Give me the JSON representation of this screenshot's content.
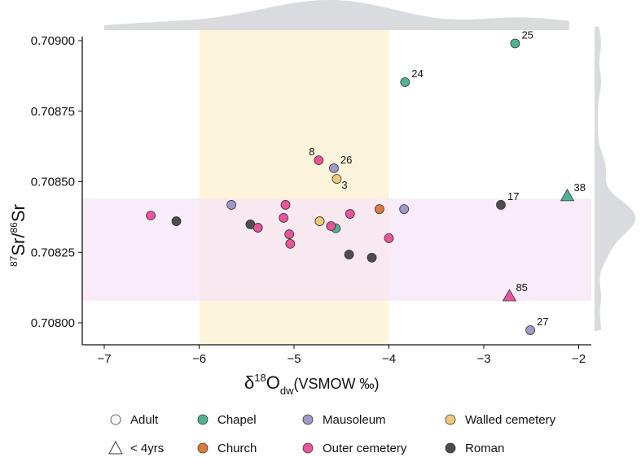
{
  "chart_data": {
    "type": "scatter",
    "xlabel_main": "δ",
    "xlabel_sup": "18",
    "xlabel_O": "O",
    "xlabel_sub": "dw",
    "xlabel_rest": "(VSMOW ‰)",
    "ylabel_sup1": "87",
    "ylabel_mid": "Sr/",
    "ylabel_sup2": "86",
    "ylabel_end": "Sr",
    "xlim": [
      -7.25,
      -1.85
    ],
    "ylim": [
      0.70793,
      0.70905
    ],
    "xticks": [
      -7,
      -6,
      -5,
      -4,
      -3,
      -2
    ],
    "xtick_labels": [
      "−7",
      "−6",
      "−5",
      "−4",
      "−3",
      "−2"
    ],
    "yticks": [
      0.709,
      0.70875,
      0.7085,
      0.70825,
      0.708
    ],
    "ytick_labels": [
      "0.70900",
      "0.70875",
      "0.70850",
      "0.70825",
      "0.70800"
    ],
    "bands": {
      "x_range": [
        -6,
        -4
      ],
      "y_range": [
        0.708078,
        0.708441
      ]
    },
    "colors": {
      "Chapel": "#4fb392",
      "Mausoleum": "#9c9ac9",
      "Walled cemetery": "#ecc87a",
      "Church": "#e07a3c",
      "Outer cemetery": "#e8559a",
      "Roman": "#4d4d4d",
      "band_x": "#fdf4dc",
      "band_y": "#f6e6f7",
      "density": "#d9dbdf"
    },
    "points": [
      {
        "x": -2.67,
        "y": 0.70899,
        "group": "Chapel",
        "shape": "circle",
        "label": "25"
      },
      {
        "x": -3.83,
        "y": 0.708853,
        "group": "Chapel",
        "shape": "circle",
        "label": "24"
      },
      {
        "x": -4.74,
        "y": 0.708576,
        "group": "Outer cemetery",
        "shape": "circle",
        "label": "8"
      },
      {
        "x": -4.58,
        "y": 0.708548,
        "group": "Mausoleum",
        "shape": "circle",
        "label": "26"
      },
      {
        "x": -4.55,
        "y": 0.70851,
        "group": "Walled cemetery",
        "shape": "circle",
        "label": "3"
      },
      {
        "x": -2.82,
        "y": 0.708418,
        "group": "Roman",
        "shape": "circle",
        "label": "17"
      },
      {
        "x": -2.12,
        "y": 0.70845,
        "group": "Chapel",
        "shape": "triangle",
        "label": "38"
      },
      {
        "x": -2.73,
        "y": 0.708095,
        "group": "Outer cemetery",
        "shape": "triangle",
        "label": "85"
      },
      {
        "x": -2.51,
        "y": 0.707974,
        "group": "Mausoleum",
        "shape": "circle",
        "label": "27"
      },
      {
        "x": -6.51,
        "y": 0.70838,
        "group": "Outer cemetery",
        "shape": "circle"
      },
      {
        "x": -6.24,
        "y": 0.70836,
        "group": "Roman",
        "shape": "circle"
      },
      {
        "x": -5.66,
        "y": 0.708418,
        "group": "Mausoleum",
        "shape": "circle"
      },
      {
        "x": -5.46,
        "y": 0.708349,
        "group": "Roman",
        "shape": "circle"
      },
      {
        "x": -5.38,
        "y": 0.708337,
        "group": "Outer cemetery",
        "shape": "circle"
      },
      {
        "x": -5.09,
        "y": 0.708418,
        "group": "Outer cemetery",
        "shape": "circle"
      },
      {
        "x": -5.11,
        "y": 0.708372,
        "group": "Outer cemetery",
        "shape": "circle"
      },
      {
        "x": -5.05,
        "y": 0.708314,
        "group": "Outer cemetery",
        "shape": "circle"
      },
      {
        "x": -5.04,
        "y": 0.70828,
        "group": "Outer cemetery",
        "shape": "circle"
      },
      {
        "x": -4.73,
        "y": 0.70836,
        "group": "Walled cemetery",
        "shape": "circle"
      },
      {
        "x": -4.56,
        "y": 0.708335,
        "group": "Chapel",
        "shape": "circle"
      },
      {
        "x": -4.61,
        "y": 0.708343,
        "group": "Outer cemetery",
        "shape": "circle"
      },
      {
        "x": -4.41,
        "y": 0.708386,
        "group": "Outer cemetery",
        "shape": "circle"
      },
      {
        "x": -4.1,
        "y": 0.708403,
        "group": "Church",
        "shape": "circle"
      },
      {
        "x": -3.84,
        "y": 0.708403,
        "group": "Mausoleum",
        "shape": "circle"
      },
      {
        "x": -4.0,
        "y": 0.7083,
        "group": "Outer cemetery",
        "shape": "circle"
      },
      {
        "x": -4.42,
        "y": 0.708242,
        "group": "Roman",
        "shape": "circle"
      },
      {
        "x": -4.18,
        "y": 0.708231,
        "group": "Roman",
        "shape": "circle"
      }
    ],
    "legend": {
      "placement": "bottom",
      "items": [
        {
          "label": "Adult",
          "shape": "circle",
          "group": null
        },
        {
          "label": "Chapel",
          "shape": "circle",
          "group": "Chapel"
        },
        {
          "label": "Mausoleum",
          "shape": "circle",
          "group": "Mausoleum"
        },
        {
          "label": "Walled cemetery",
          "shape": "circle",
          "group": "Walled cemetery"
        },
        {
          "label": "< 4yrs",
          "shape": "triangle",
          "group": null
        },
        {
          "label": "Church",
          "shape": "circle",
          "group": "Church"
        },
        {
          "label": "Outer cemetery",
          "shape": "circle",
          "group": "Outer cemetery"
        },
        {
          "label": "Roman",
          "shape": "circle",
          "group": "Roman"
        }
      ]
    }
  }
}
